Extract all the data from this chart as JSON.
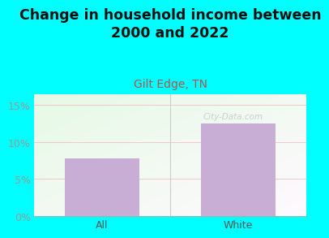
{
  "title": "Change in household income between\n2000 and 2022",
  "subtitle": "Gilt Edge, TN",
  "categories": [
    "All",
    "White"
  ],
  "values": [
    7.8,
    12.5
  ],
  "bar_color": "#c8aed4",
  "title_fontsize": 12.5,
  "subtitle_fontsize": 10,
  "subtitle_color": "#aa5555",
  "background_color": "#00ffff",
  "yticks": [
    0,
    5,
    10,
    15
  ],
  "ylim": [
    0,
    16.5
  ],
  "yticklabels": [
    "0%",
    "5%",
    "10%",
    "15%"
  ],
  "ytick_color": "#999999",
  "xtick_color": "#555555",
  "grid_color": "#f0c0c0",
  "divider_color": "#cccccc",
  "watermark": "City-Data.com",
  "watermark_color": "#bbcccc"
}
